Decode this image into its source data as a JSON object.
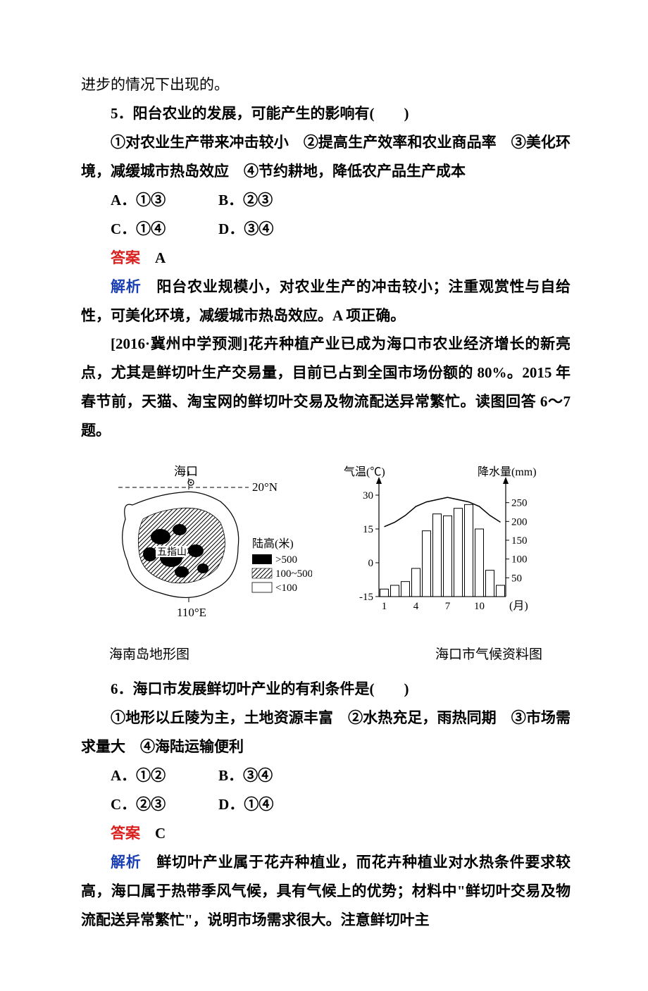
{
  "intro_tail": "进步的情况下出现的。",
  "q5": {
    "stem": "5．阳台农业的发展，可能产生的影响有(　　)",
    "choices_line": "①对农业生产带来冲击较小　②提高生产效率和农业商品率　③美化环境，减缓城市热岛效应　④节约耕地，降低农产品生产成本",
    "optA": "A．①③",
    "optB": "B．②③",
    "optC": "C．①④",
    "optD": "D．③④",
    "ans_label": "答案",
    "ans_value": "A",
    "exp_label": "解析",
    "exp_text": "阳台农业规模小，对农业生产的冲击较小；注重观赏性与自给性，可美化环境，减缓城市热岛效应。A 项正确。"
  },
  "passage67": {
    "source": "[2016·冀州中学预测]",
    "body": "花卉种植产业已成为海口市农业经济增长的新亮点，尤其是鲜切叶生产交易量，目前已占到全国市场份额的 80%。2015 年春节前，天猫、淘宝网的鲜切叶交易及物流配送异常繁忙。读图回答 6～7 题。"
  },
  "map": {
    "labels": {
      "haikou": "海口",
      "lat": "20°N",
      "wuzhi": "五指山",
      "lon": "110°E",
      "legend_title": "陆高(米)",
      "legend_hi": ">500",
      "legend_mid": "100~500",
      "legend_lo": "<100"
    },
    "caption": "海南岛地形图",
    "colors": {
      "land_high": "#000000",
      "land_mid_hatch": "#000000",
      "land_low": "#ffffff",
      "outline": "#000000"
    }
  },
  "climate": {
    "labels": {
      "temp_axis": "气温(℃)",
      "precip_axis": "降水量(mm)",
      "x_axis": "(月)"
    },
    "temp_ticks": [
      "-15",
      "0",
      "15",
      "30"
    ],
    "precip_ticks": [
      "50",
      "100",
      "150",
      "200",
      "250"
    ],
    "x_ticks": [
      "1",
      "4",
      "7",
      "10"
    ],
    "bar_values": [
      20,
      30,
      40,
      75,
      175,
      220,
      215,
      235,
      245,
      180,
      70,
      30
    ],
    "bar_max": 300,
    "temp_curve": [
      16,
      18,
      21,
      25,
      27,
      28,
      29,
      28,
      27,
      25,
      21,
      18
    ],
    "temp_min": -15,
    "temp_max": 35,
    "caption": "海口市气候资料图",
    "colors": {
      "axis": "#000000",
      "bar_fill": "#ffffff",
      "bar_stroke": "#000000",
      "curve": "#000000"
    }
  },
  "q6": {
    "stem": "6．海口市发展鲜切叶产业的有利条件是(　　)",
    "choices_line": "①地形以丘陵为主，土地资源丰富　②水热充足，雨热同期　③市场需求量大　④海陆运输便利",
    "optA": "A．①②",
    "optB": "B．③④",
    "optC": "C．②③",
    "optD": "D．①④",
    "ans_label": "答案",
    "ans_value": "C",
    "exp_label": "解析",
    "exp_text_part": "鲜切叶产业属于花卉种植业，而花卉种植业对水热条件要求较高，海口属于热带季风气候，具有气候上的优势；材料中\"鲜切叶交易及物流配送异常繁忙\"，说明市场需求很大。注意鲜切叶主"
  }
}
